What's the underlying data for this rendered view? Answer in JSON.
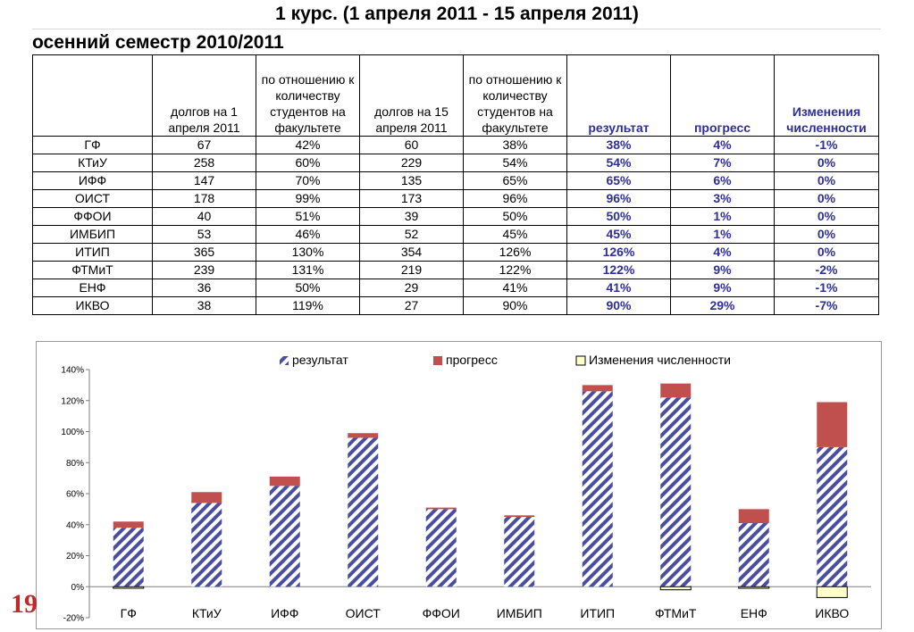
{
  "title": "1 курс.  (1 апреля 2011  -  15 апреля 2011)",
  "subtitle": "осенний семестр 2010/2011",
  "page_number": "19",
  "table": {
    "headers": [
      "",
      "долгов на 1 апреля 2011",
      "по отношению к количеству студентов на факультете",
      "долгов на 15 апреля 2011",
      "по отношению к количеству студентов на факультете",
      "результат",
      "прогресс",
      "Изменения численности"
    ],
    "rows": [
      [
        "ГФ",
        "67",
        "42%",
        "60",
        "38%",
        "38%",
        "4%",
        "-1%"
      ],
      [
        "КТиУ",
        "258",
        "60%",
        "229",
        "54%",
        "54%",
        "7%",
        "0%"
      ],
      [
        "ИФФ",
        "147",
        "70%",
        "135",
        "65%",
        "65%",
        "6%",
        "0%"
      ],
      [
        "ОИСТ",
        "178",
        "99%",
        "173",
        "96%",
        "96%",
        "3%",
        "0%"
      ],
      [
        "ФФОИ",
        "40",
        "51%",
        "39",
        "50%",
        "50%",
        "1%",
        "0%"
      ],
      [
        "ИМБИП",
        "53",
        "46%",
        "52",
        "45%",
        "45%",
        "1%",
        "0%"
      ],
      [
        "ИТИП",
        "365",
        "130%",
        "354",
        "126%",
        "126%",
        "4%",
        "0%"
      ],
      [
        "ФТМиТ",
        "239",
        "131%",
        "219",
        "122%",
        "122%",
        "9%",
        "-2%"
      ],
      [
        "ЕНФ",
        "36",
        "50%",
        "29",
        "41%",
        "41%",
        "9%",
        "-1%"
      ],
      [
        "ИКВО",
        "38",
        "119%",
        "27",
        "90%",
        "90%",
        "29%",
        "-7%"
      ]
    ]
  },
  "chart_data": {
    "type": "bar",
    "stacked": true,
    "title": "",
    "xlabel": "",
    "ylabel": "",
    "ylim": [
      -20,
      140
    ],
    "yticks": [
      "-20%",
      "0%",
      "20%",
      "40%",
      "60%",
      "80%",
      "100%",
      "120%",
      "140%"
    ],
    "categories": [
      "ГФ",
      "КТиУ",
      "ИФФ",
      "ОИСТ",
      "ФФОИ",
      "ИМБИП",
      "ИТИП",
      "ФТМиТ",
      "ЕНФ",
      "ИКВО"
    ],
    "series": [
      {
        "name": "результат",
        "values": [
          38,
          54,
          65,
          96,
          50,
          45,
          126,
          122,
          41,
          90
        ],
        "color": "#4a4ea0",
        "pattern": "diagonal-stripes"
      },
      {
        "name": "прогресс",
        "values": [
          4,
          7,
          6,
          3,
          1,
          1,
          4,
          9,
          9,
          29
        ],
        "color": "#c0504d"
      },
      {
        "name": "Изменения численности",
        "values": [
          -1,
          0,
          0,
          0,
          0,
          0,
          0,
          -2,
          -1,
          -7
        ],
        "color": "#ffffcc"
      }
    ],
    "legend_position": "top",
    "grid": false
  }
}
